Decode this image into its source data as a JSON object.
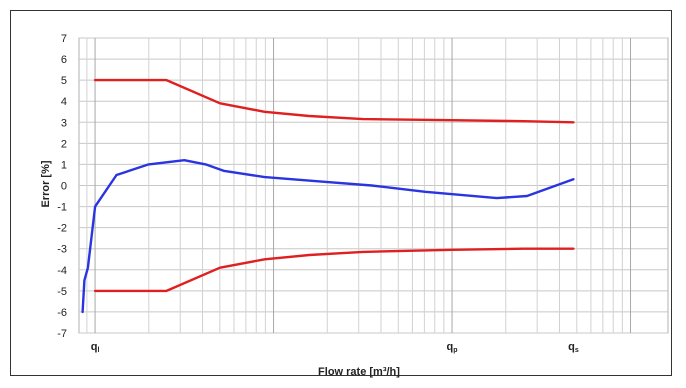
{
  "chart_data": {
    "type": "line",
    "xlabel": "Flow rate [m³/h]",
    "ylabel": "Error [%]",
    "xscale": "log",
    "ylim": [
      -7,
      7
    ],
    "yticks": [
      -7,
      -6,
      -5,
      -4,
      -3,
      -2,
      -1,
      0,
      1,
      2,
      3,
      4,
      5,
      6,
      7
    ],
    "grid": true,
    "xtick_labels": [
      {
        "main": "q",
        "sub": "l",
        "x_decades": 0.0
      },
      {
        "main": "q",
        "sub": "p",
        "x_decades": 2.0
      },
      {
        "main": "q",
        "sub": "s",
        "x_decades": 2.68
      }
    ],
    "series": [
      {
        "color": "#e02020",
        "x_decades": [
          0.0,
          0.4,
          0.7,
          0.95,
          1.2,
          1.5,
          2.0,
          2.4,
          2.68
        ],
        "values": [
          5.0,
          5.0,
          3.9,
          3.5,
          3.3,
          3.15,
          3.1,
          3.05,
          3.0
        ]
      },
      {
        "color": "#e02020",
        "x_decades": [
          0.0,
          0.4,
          0.7,
          0.95,
          1.2,
          1.5,
          2.0,
          2.4,
          2.68
        ],
        "values": [
          -5.0,
          -5.0,
          -3.9,
          -3.5,
          -3.3,
          -3.15,
          -3.05,
          -3.0,
          -3.0
        ]
      },
      {
        "color": "#2a34e0",
        "x_decades": [
          -0.07,
          -0.06,
          -0.04,
          0.0,
          0.12,
          0.3,
          0.5,
          0.62,
          0.72,
          0.95,
          1.25,
          1.55,
          1.85,
          2.25,
          2.42,
          2.68
        ],
        "values": [
          -6.0,
          -4.5,
          -3.9,
          -1.0,
          0.5,
          1.0,
          1.2,
          1.0,
          0.7,
          0.4,
          0.2,
          0.0,
          -0.3,
          -0.6,
          -0.5,
          0.3
        ]
      }
    ],
    "xlim_decades": [
      -0.09,
      3.21
    ]
  }
}
